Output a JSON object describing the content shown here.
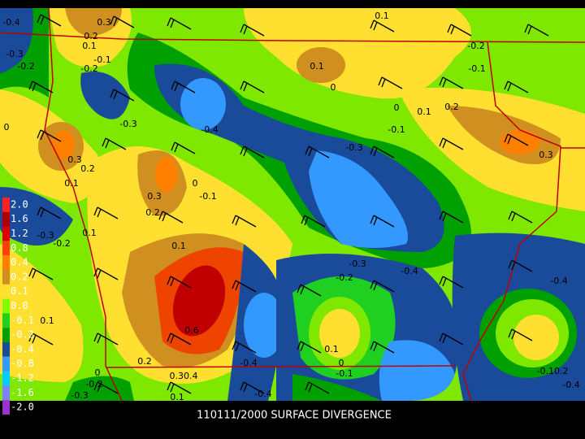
{
  "caption": "110111/2000 SURFACE DIVERGENCE",
  "legend": {
    "labels": [
      "2.0",
      "1.6",
      "1.2",
      "0.8",
      "0.4",
      "0.2",
      "0.1",
      "0.0",
      "-0.1",
      "-0.2",
      "-0.4",
      "-0.8",
      "-1.2",
      "-1.6",
      "-2.0"
    ],
    "colors": [
      "#ff2020",
      "#b00000",
      "#e00000",
      "#ff4000",
      "#ff8000",
      "#d09020",
      "#ffe030",
      "#80ff00",
      "#20d020",
      "#00a000",
      "#1a4a9a",
      "#3399ff",
      "#00ccff",
      "#8080ff",
      "#9933cc"
    ]
  },
  "contour_labels": [
    "-0.4",
    "0.3",
    "0.2",
    "0.1",
    "-0.1",
    "-0.3",
    "-0.2",
    "-0.2",
    "0.1",
    "-0.2",
    "0.1",
    "0",
    "-0.1",
    "0",
    "0.1",
    "0.2",
    "-0.1",
    "-0.3",
    "-0.4",
    "-0.3",
    "0",
    "0.3",
    "0.2",
    "0.1",
    "0.3",
    "0",
    "-0.1",
    "0.3",
    "0.2",
    "-0.3",
    "-0.2",
    "0.1",
    "0.1",
    "-0.3",
    "-0.2",
    "-0.4",
    "-0.4",
    "0.6",
    "0.1",
    "0.1",
    "0.2",
    "-0.4",
    "0",
    "-0.1",
    "0.30.4",
    "0.1",
    "-0.4",
    "-0.3",
    "-0.2",
    "0",
    "-0.10.2",
    "-0.4"
  ]
}
